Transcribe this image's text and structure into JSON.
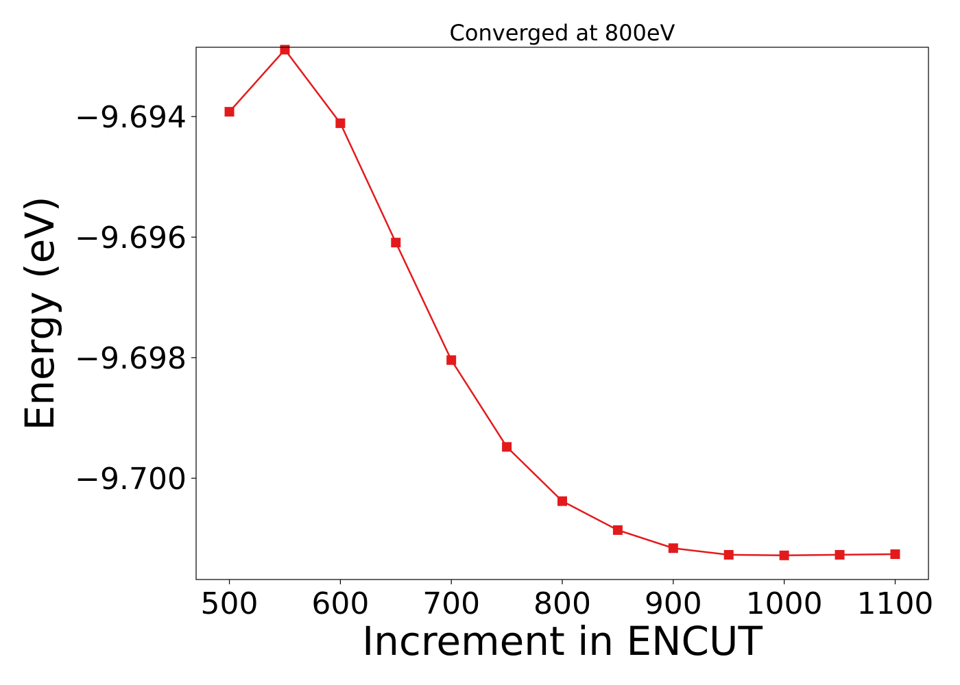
{
  "chart_data": {
    "type": "line",
    "title": "Converged at 800eV",
    "xlabel": "Increment in ENCUT",
    "ylabel": "Energy (eV)",
    "xlim": [
      470,
      1130
    ],
    "ylim": [
      -9.70168,
      -9.69285
    ],
    "x_ticks": [
      500,
      600,
      700,
      800,
      900,
      1000,
      1100
    ],
    "x_tick_labels": [
      "500",
      "600",
      "700",
      "800",
      "900",
      "1000",
      "1100"
    ],
    "y_ticks": [
      -9.694,
      -9.696,
      -9.698,
      -9.7
    ],
    "y_tick_labels": [
      "−9.694",
      "−9.696",
      "−9.698",
      "−9.700"
    ],
    "grid": false,
    "series": [
      {
        "marker": "square",
        "color": "#e31a1c",
        "x": [
          500,
          550,
          600,
          650,
          700,
          750,
          800,
          850,
          900,
          950,
          1000,
          1050,
          1100
        ],
        "y": [
          -9.69392,
          -9.69289,
          -9.69411,
          -9.69609,
          -9.69804,
          -9.69948,
          -9.70038,
          -9.70086,
          -9.70116,
          -9.70127,
          -9.70128,
          -9.70127,
          -9.70126
        ]
      }
    ]
  }
}
